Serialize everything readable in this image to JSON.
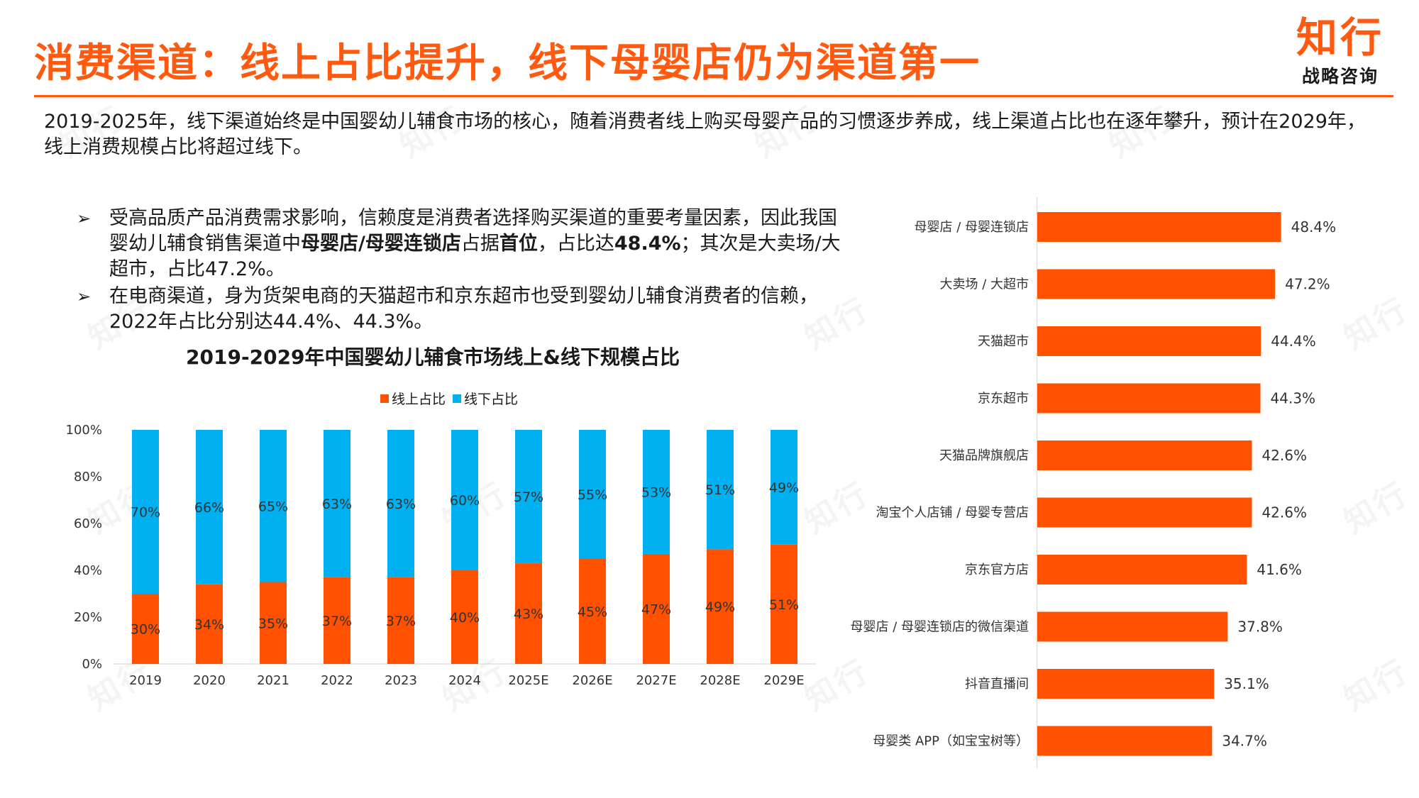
{
  "header": {
    "title": "消费渠道：线上占比提升，线下母婴店仍为渠道第一",
    "logo_main": "知行",
    "logo_sub": "战略咨询"
  },
  "summary": "2019-2025年，线下渠道始终是中国婴幼儿辅食市场的核心，随着消费者线上购买母婴产品的习惯逐步养成，线上渠道占比也在逐年攀升，预计在2029年，线上消费规模占比将超过线下。",
  "bullets": {
    "b1_a": "受高品质产品消费需求影响，信赖度是消费者选择购买渠道的重要考量因素，因此我国婴幼儿辅食销售渠道中",
    "b1_bold1": "母婴店/母婴连锁店",
    "b1_b": "占据",
    "b1_bold2": "首位",
    "b1_c": "，占比达",
    "b1_bold3": "48.4%",
    "b1_d": "；其次是大卖场/大超市，占比47.2%。",
    "b2": "在电商渠道，身为货架电商的天猫超市和京东超市也受到婴幼儿辅食消费者的信赖，2022年占比分别达44.4%、44.3%。"
  },
  "watermark": "知行",
  "colors": {
    "accent": "#ff5a0f",
    "online": "#ff5100",
    "offline": "#00b0f0"
  },
  "chart_data": [
    {
      "type": "bar",
      "stacked": true,
      "title": "2019-2029年中国婴幼儿辅食市场线上&线下规模占比",
      "categories": [
        "2019",
        "2020",
        "2021",
        "2022",
        "2023",
        "2024",
        "2025E",
        "2026E",
        "2027E",
        "2028E",
        "2029E"
      ],
      "series": [
        {
          "name": "线上占比",
          "values": [
            30,
            34,
            35,
            37,
            37,
            40,
            43,
            45,
            47,
            49,
            51
          ]
        },
        {
          "name": "线下占比",
          "values": [
            70,
            66,
            65,
            63,
            63,
            60,
            57,
            55,
            53,
            51,
            49
          ]
        }
      ],
      "value_labels_online": [
        "30%",
        "34%",
        "35%",
        "37%",
        "37%",
        "40%",
        "43%",
        "45%",
        "47%",
        "49%",
        "51%"
      ],
      "value_labels_offline": [
        "70%",
        "66%",
        "65%",
        "63%",
        "63%",
        "60%",
        "57%",
        "55%",
        "53%",
        "51%",
        "49%"
      ],
      "y_ticks": [
        "0%",
        "20%",
        "40%",
        "60%",
        "80%",
        "100%"
      ],
      "ylim": [
        0,
        100
      ],
      "legend": "top",
      "grid": false
    },
    {
      "type": "bar",
      "orientation": "horizontal",
      "categories": [
        "母婴店 / 母婴连锁店",
        "大卖场 / 大超市",
        "天猫超市",
        "京东超市",
        "天猫品牌旗舰店",
        "淘宝个人店铺 / 母婴专营店",
        "京东官方店",
        "母婴店 / 母婴连锁店的微信渠道",
        "抖音直播间",
        "母婴类 APP（如宝宝树等）"
      ],
      "values": [
        48.4,
        47.2,
        44.4,
        44.3,
        42.6,
        42.6,
        41.6,
        37.8,
        35.1,
        34.7
      ],
      "value_labels": [
        "48.4%",
        "47.2%",
        "44.4%",
        "44.3%",
        "42.6%",
        "42.6%",
        "41.6%",
        "37.8%",
        "35.1%",
        "34.7%"
      ],
      "grid": false
    }
  ]
}
